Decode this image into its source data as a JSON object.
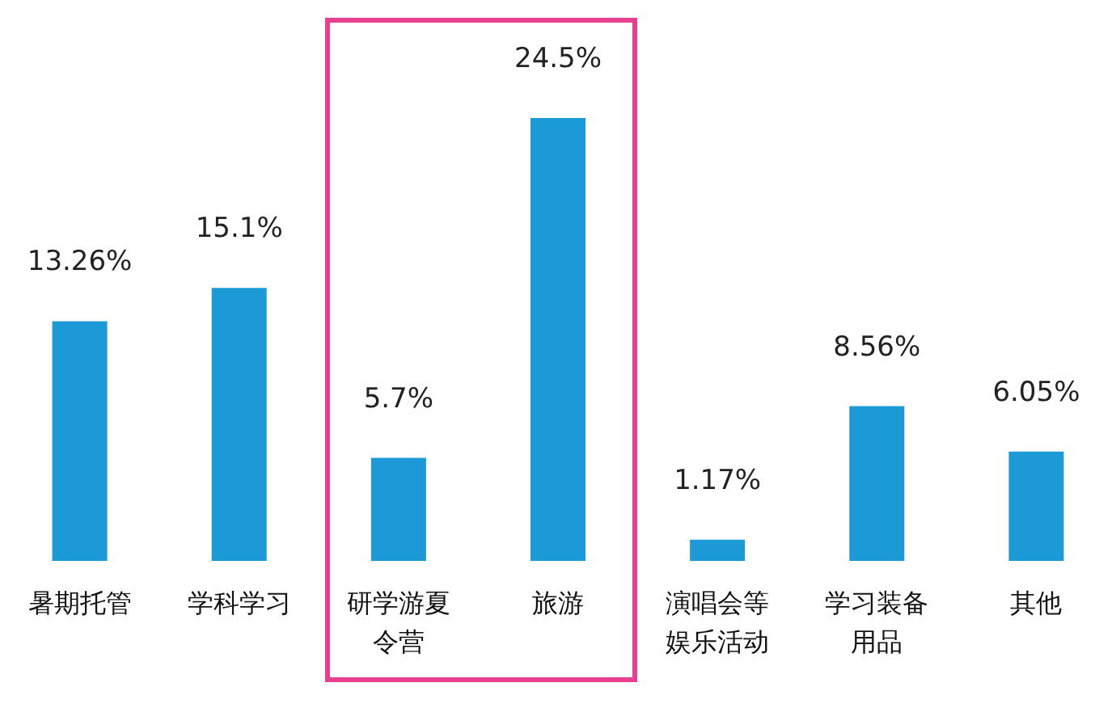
{
  "chart_data": {
    "type": "bar",
    "categories": [
      "暑期托管",
      "学科学习",
      "研学游夏令营",
      "旅游",
      "演唱会等娱乐活动",
      "学习装备用品",
      "其他"
    ],
    "values": [
      13.26,
      15.1,
      5.7,
      24.5,
      1.17,
      8.56,
      6.05
    ],
    "color": "#1b9ad7",
    "value_labels": [
      "13.26%",
      "15.1%",
      "5.7%",
      "24.5%",
      "1.17%",
      "8.56%",
      "6.05%"
    ]
  }
}
